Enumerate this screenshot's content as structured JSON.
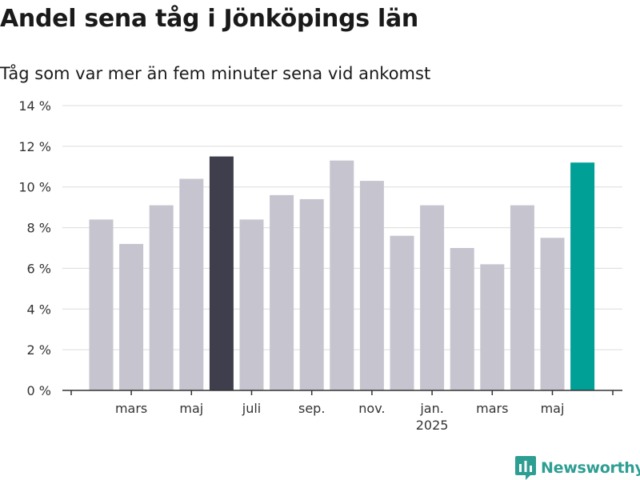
{
  "header": {
    "title": "Andel sena tåg i Jönköpings län",
    "subtitle": "Tåg som var mer än fem minuter sena vid ankomst"
  },
  "brand": {
    "name": "Newsworthy",
    "color": "#2e9e93"
  },
  "chart_data": {
    "type": "bar",
    "title": "Andel sena tåg i Jönköpings län",
    "subtitle": "Tåg som var mer än fem minuter sena vid ankomst",
    "xlabel": "",
    "ylabel": "",
    "ylim": [
      0,
      14
    ],
    "y_ticks": [
      0,
      2,
      4,
      6,
      8,
      10,
      12,
      14
    ],
    "y_tick_suffix": " %",
    "grid": true,
    "x_tick_labels": [
      {
        "bar_index": 1,
        "label": "mars"
      },
      {
        "bar_index": 3,
        "label": "maj"
      },
      {
        "bar_index": 5,
        "label": "juli"
      },
      {
        "bar_index": 7,
        "label": "sep."
      },
      {
        "bar_index": 9,
        "label": "nov."
      },
      {
        "bar_index": 11,
        "label": "jan.",
        "sublabel": "2025"
      },
      {
        "bar_index": 13,
        "label": "mars"
      },
      {
        "bar_index": 15,
        "label": "maj"
      }
    ],
    "values": [
      8.4,
      7.2,
      9.1,
      10.4,
      11.5,
      8.4,
      9.6,
      9.4,
      11.3,
      10.3,
      7.6,
      9.1,
      7.0,
      6.2,
      9.1,
      7.5,
      11.2
    ],
    "bar_colors": [
      "#c6c5cf",
      "#c6c5cf",
      "#c6c5cf",
      "#c6c5cf",
      "#3f3e4c",
      "#c6c5cf",
      "#c6c5cf",
      "#c6c5cf",
      "#c6c5cf",
      "#c6c5cf",
      "#c6c5cf",
      "#c6c5cf",
      "#c6c5cf",
      "#c6c5cf",
      "#c6c5cf",
      "#c6c5cf",
      "#00a097"
    ]
  }
}
